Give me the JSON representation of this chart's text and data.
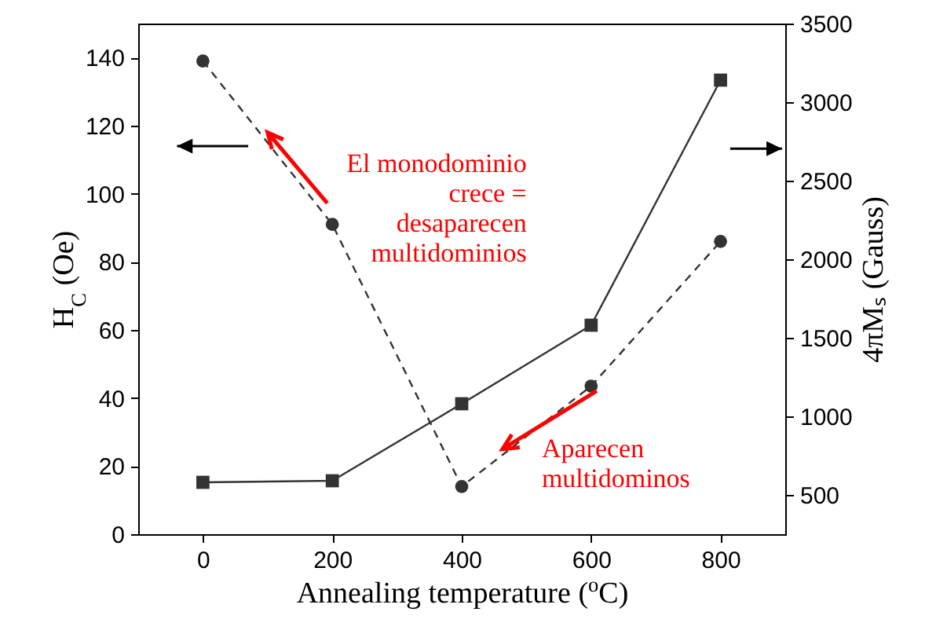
{
  "chart_data": {
    "type": "line",
    "xlabel": "Annealing temperature ($^{o}$C)",
    "ylabel": "H$_{C}$ (Oe)",
    "y2label": "4πMₛ (Gauss)",
    "x": [
      0,
      200,
      400,
      600,
      800
    ],
    "series": [
      {
        "color": "#333333",
        "values": [
          139,
          91,
          14,
          43.5,
          86
        ],
        "marker": "circle",
        "line_style": "dashed"
      },
      {
        "color": "#333333",
        "values": [
          580,
          590,
          1080,
          1580,
          3140
        ],
        "marker": "square",
        "line_style": "solid",
        "axis": "y2"
      }
    ],
    "xlim": [
      -100,
      900
    ],
    "xticks": [
      0,
      200,
      400,
      600,
      800
    ],
    "ylim": [
      0,
      150
    ],
    "yticks": [
      0,
      20,
      40,
      60,
      80,
      100,
      120,
      140
    ],
    "y2lim": [
      250,
      3500
    ],
    "y2ticks": [
      500,
      1000,
      1500,
      2000,
      2500,
      3000,
      3500
    ],
    "grid": false,
    "annotations": [
      {
        "text": "El monodominio crece = desaparecen multidominios",
        "x": 100,
        "y": 118
      },
      {
        "text": "Aparecen multidominos",
        "x": 463,
        "y": 25
      }
    ]
  }
}
